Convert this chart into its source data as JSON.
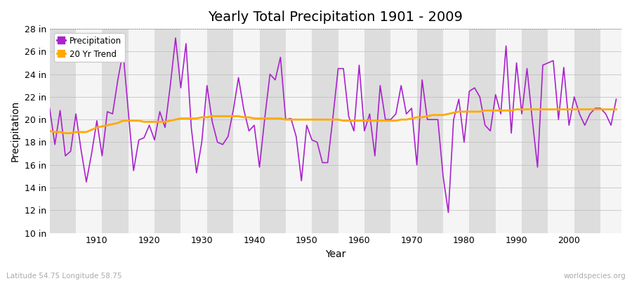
{
  "title": "Yearly Total Precipitation 1901 - 2009",
  "xlabel": "Year",
  "ylabel": "Precipitation",
  "subtitle_left": "Latitude 54.75 Longitude 58.75",
  "subtitle_right": "worldspecies.org",
  "years": [
    1901,
    1902,
    1903,
    1904,
    1905,
    1906,
    1907,
    1908,
    1909,
    1910,
    1911,
    1912,
    1913,
    1914,
    1915,
    1916,
    1917,
    1918,
    1919,
    1920,
    1921,
    1922,
    1923,
    1924,
    1925,
    1926,
    1927,
    1928,
    1929,
    1930,
    1931,
    1932,
    1933,
    1934,
    1935,
    1936,
    1937,
    1938,
    1939,
    1940,
    1941,
    1942,
    1943,
    1944,
    1945,
    1946,
    1947,
    1948,
    1949,
    1950,
    1951,
    1952,
    1953,
    1954,
    1955,
    1956,
    1957,
    1958,
    1959,
    1960,
    1961,
    1962,
    1963,
    1964,
    1965,
    1966,
    1967,
    1968,
    1969,
    1970,
    1971,
    1972,
    1973,
    1974,
    1975,
    1976,
    1977,
    1978,
    1979,
    1980,
    1981,
    1982,
    1983,
    1984,
    1985,
    1986,
    1987,
    1988,
    1989,
    1990,
    1991,
    1992,
    1993,
    1994,
    1995,
    1996,
    1997,
    1998,
    1999,
    2000,
    2001,
    2002,
    2003,
    2004,
    2005,
    2006,
    2007,
    2008,
    2009
  ],
  "precip": [
    21.0,
    17.8,
    20.8,
    16.8,
    17.2,
    20.5,
    17.3,
    14.5,
    17.0,
    19.9,
    16.8,
    20.7,
    20.5,
    23.5,
    26.0,
    20.7,
    15.5,
    18.2,
    18.4,
    19.5,
    18.2,
    20.7,
    19.3,
    23.0,
    27.2,
    22.8,
    26.7,
    19.3,
    15.3,
    18.0,
    23.0,
    19.8,
    18.0,
    17.8,
    18.5,
    20.8,
    23.7,
    20.9,
    19.0,
    19.5,
    15.8,
    20.1,
    24.0,
    23.5,
    25.5,
    20.0,
    20.1,
    18.5,
    14.6,
    19.5,
    18.2,
    18.0,
    16.2,
    16.2,
    20.2,
    24.5,
    24.5,
    20.3,
    19.0,
    24.8,
    19.0,
    20.5,
    16.8,
    23.0,
    20.0,
    20.0,
    20.5,
    23.0,
    20.5,
    21.0,
    16.0,
    23.5,
    20.0,
    20.0,
    20.0,
    15.0,
    11.8,
    20.0,
    21.8,
    18.0,
    22.5,
    22.8,
    22.0,
    19.5,
    19.0,
    22.2,
    20.5,
    26.5,
    18.8,
    25.0,
    20.5,
    24.5,
    20.0,
    15.8,
    24.8,
    25.0,
    25.2,
    20.0,
    24.6,
    19.5,
    22.0,
    20.5,
    19.5,
    20.5,
    21.0,
    21.0,
    20.5,
    19.5,
    21.8
  ],
  "trend": [
    19.0,
    18.9,
    18.9,
    18.8,
    18.8,
    18.9,
    18.9,
    18.9,
    19.1,
    19.3,
    19.4,
    19.5,
    19.6,
    19.7,
    19.9,
    19.9,
    19.9,
    19.9,
    19.8,
    19.8,
    19.8,
    19.8,
    19.8,
    19.9,
    20.0,
    20.1,
    20.1,
    20.1,
    20.1,
    20.2,
    20.2,
    20.3,
    20.3,
    20.3,
    20.3,
    20.3,
    20.3,
    20.2,
    20.2,
    20.1,
    20.1,
    20.1,
    20.1,
    20.1,
    20.1,
    20.0,
    20.0,
    20.0,
    20.0,
    20.0,
    20.0,
    20.0,
    20.0,
    20.0,
    20.0,
    20.0,
    19.9,
    19.9,
    19.9,
    19.9,
    19.9,
    19.9,
    19.9,
    19.9,
    19.9,
    19.9,
    19.9,
    20.0,
    20.0,
    20.1,
    20.2,
    20.2,
    20.3,
    20.4,
    20.4,
    20.4,
    20.5,
    20.6,
    20.7,
    20.7,
    20.7,
    20.7,
    20.7,
    20.8,
    20.8,
    20.8,
    20.8,
    20.8,
    20.8,
    20.9,
    20.9,
    20.9,
    20.9,
    20.9,
    20.9,
    20.9,
    20.9,
    20.9,
    20.9,
    20.9,
    20.9,
    20.9,
    20.9,
    20.9,
    20.9,
    20.9,
    20.9,
    20.9,
    20.9
  ],
  "precip_color": "#aa22cc",
  "trend_color": "#ffaa00",
  "bg_color": "#ffffff",
  "plot_bg_color": "#ebebeb",
  "grid_light_color": "#f5f5f5",
  "grid_dark_color": "#dddddd",
  "top_line_color": "#888888",
  "ylim": [
    10,
    28
  ],
  "yticks": [
    10,
    12,
    14,
    16,
    18,
    20,
    22,
    24,
    26,
    28
  ],
  "ytick_labels": [
    "10 in",
    "12 in",
    "14 in",
    "16 in",
    "18 in",
    "20 in",
    "22 in",
    "24 in",
    "26 in",
    "28 in"
  ],
  "xticks": [
    1910,
    1920,
    1930,
    1940,
    1950,
    1960,
    1970,
    1980,
    1990,
    2000
  ],
  "xmin": 1901,
  "xmax": 2010,
  "title_fontsize": 14,
  "axis_label_fontsize": 10,
  "tick_fontsize": 9,
  "legend_marker_color_precip": "#aa22cc",
  "legend_marker_color_trend": "#ffaa00"
}
